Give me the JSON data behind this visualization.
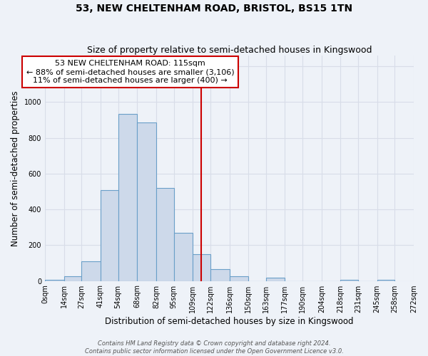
{
  "title": "53, NEW CHELTENHAM ROAD, BRISTOL, BS15 1TN",
  "subtitle": "Size of property relative to semi-detached houses in Kingswood",
  "xlabel": "Distribution of semi-detached houses by size in Kingswood",
  "ylabel": "Number of semi-detached properties",
  "bin_edges": [
    0,
    14,
    27,
    41,
    54,
    68,
    82,
    95,
    109,
    122,
    136,
    150,
    163,
    177,
    190,
    204,
    218,
    231,
    245,
    258,
    272
  ],
  "bin_heights": [
    5,
    25,
    110,
    510,
    935,
    885,
    520,
    270,
    150,
    65,
    25,
    0,
    20,
    0,
    0,
    0,
    5,
    0,
    5
  ],
  "bar_facecolor": "#cdd9ea",
  "bar_edgecolor": "#6a9fc8",
  "vline_x": 115,
  "vline_color": "#cc0000",
  "annotation_text": "53 NEW CHELTENHAM ROAD: 115sqm\n← 88% of semi-detached houses are smaller (3,106)\n11% of semi-detached houses are larger (400) →",
  "annotation_box_edgecolor": "#cc0000",
  "annotation_box_facecolor": "#ffffff",
  "tick_labels": [
    "0sqm",
    "14sqm",
    "27sqm",
    "41sqm",
    "54sqm",
    "68sqm",
    "82sqm",
    "95sqm",
    "109sqm",
    "122sqm",
    "136sqm",
    "150sqm",
    "163sqm",
    "177sqm",
    "190sqm",
    "204sqm",
    "218sqm",
    "231sqm",
    "245sqm",
    "258sqm",
    "272sqm"
  ],
  "ylim": [
    0,
    1260
  ],
  "yticks": [
    0,
    200,
    400,
    600,
    800,
    1000,
    1200
  ],
  "footer_line1": "Contains HM Land Registry data © Crown copyright and database right 2024.",
  "footer_line2": "Contains public sector information licensed under the Open Government Licence v3.0.",
  "background_color": "#eef2f8",
  "grid_color": "#d8dde8",
  "title_fontsize": 10,
  "subtitle_fontsize": 9,
  "axis_label_fontsize": 8.5,
  "tick_fontsize": 7,
  "annotation_fontsize": 8,
  "footer_fontsize": 6
}
